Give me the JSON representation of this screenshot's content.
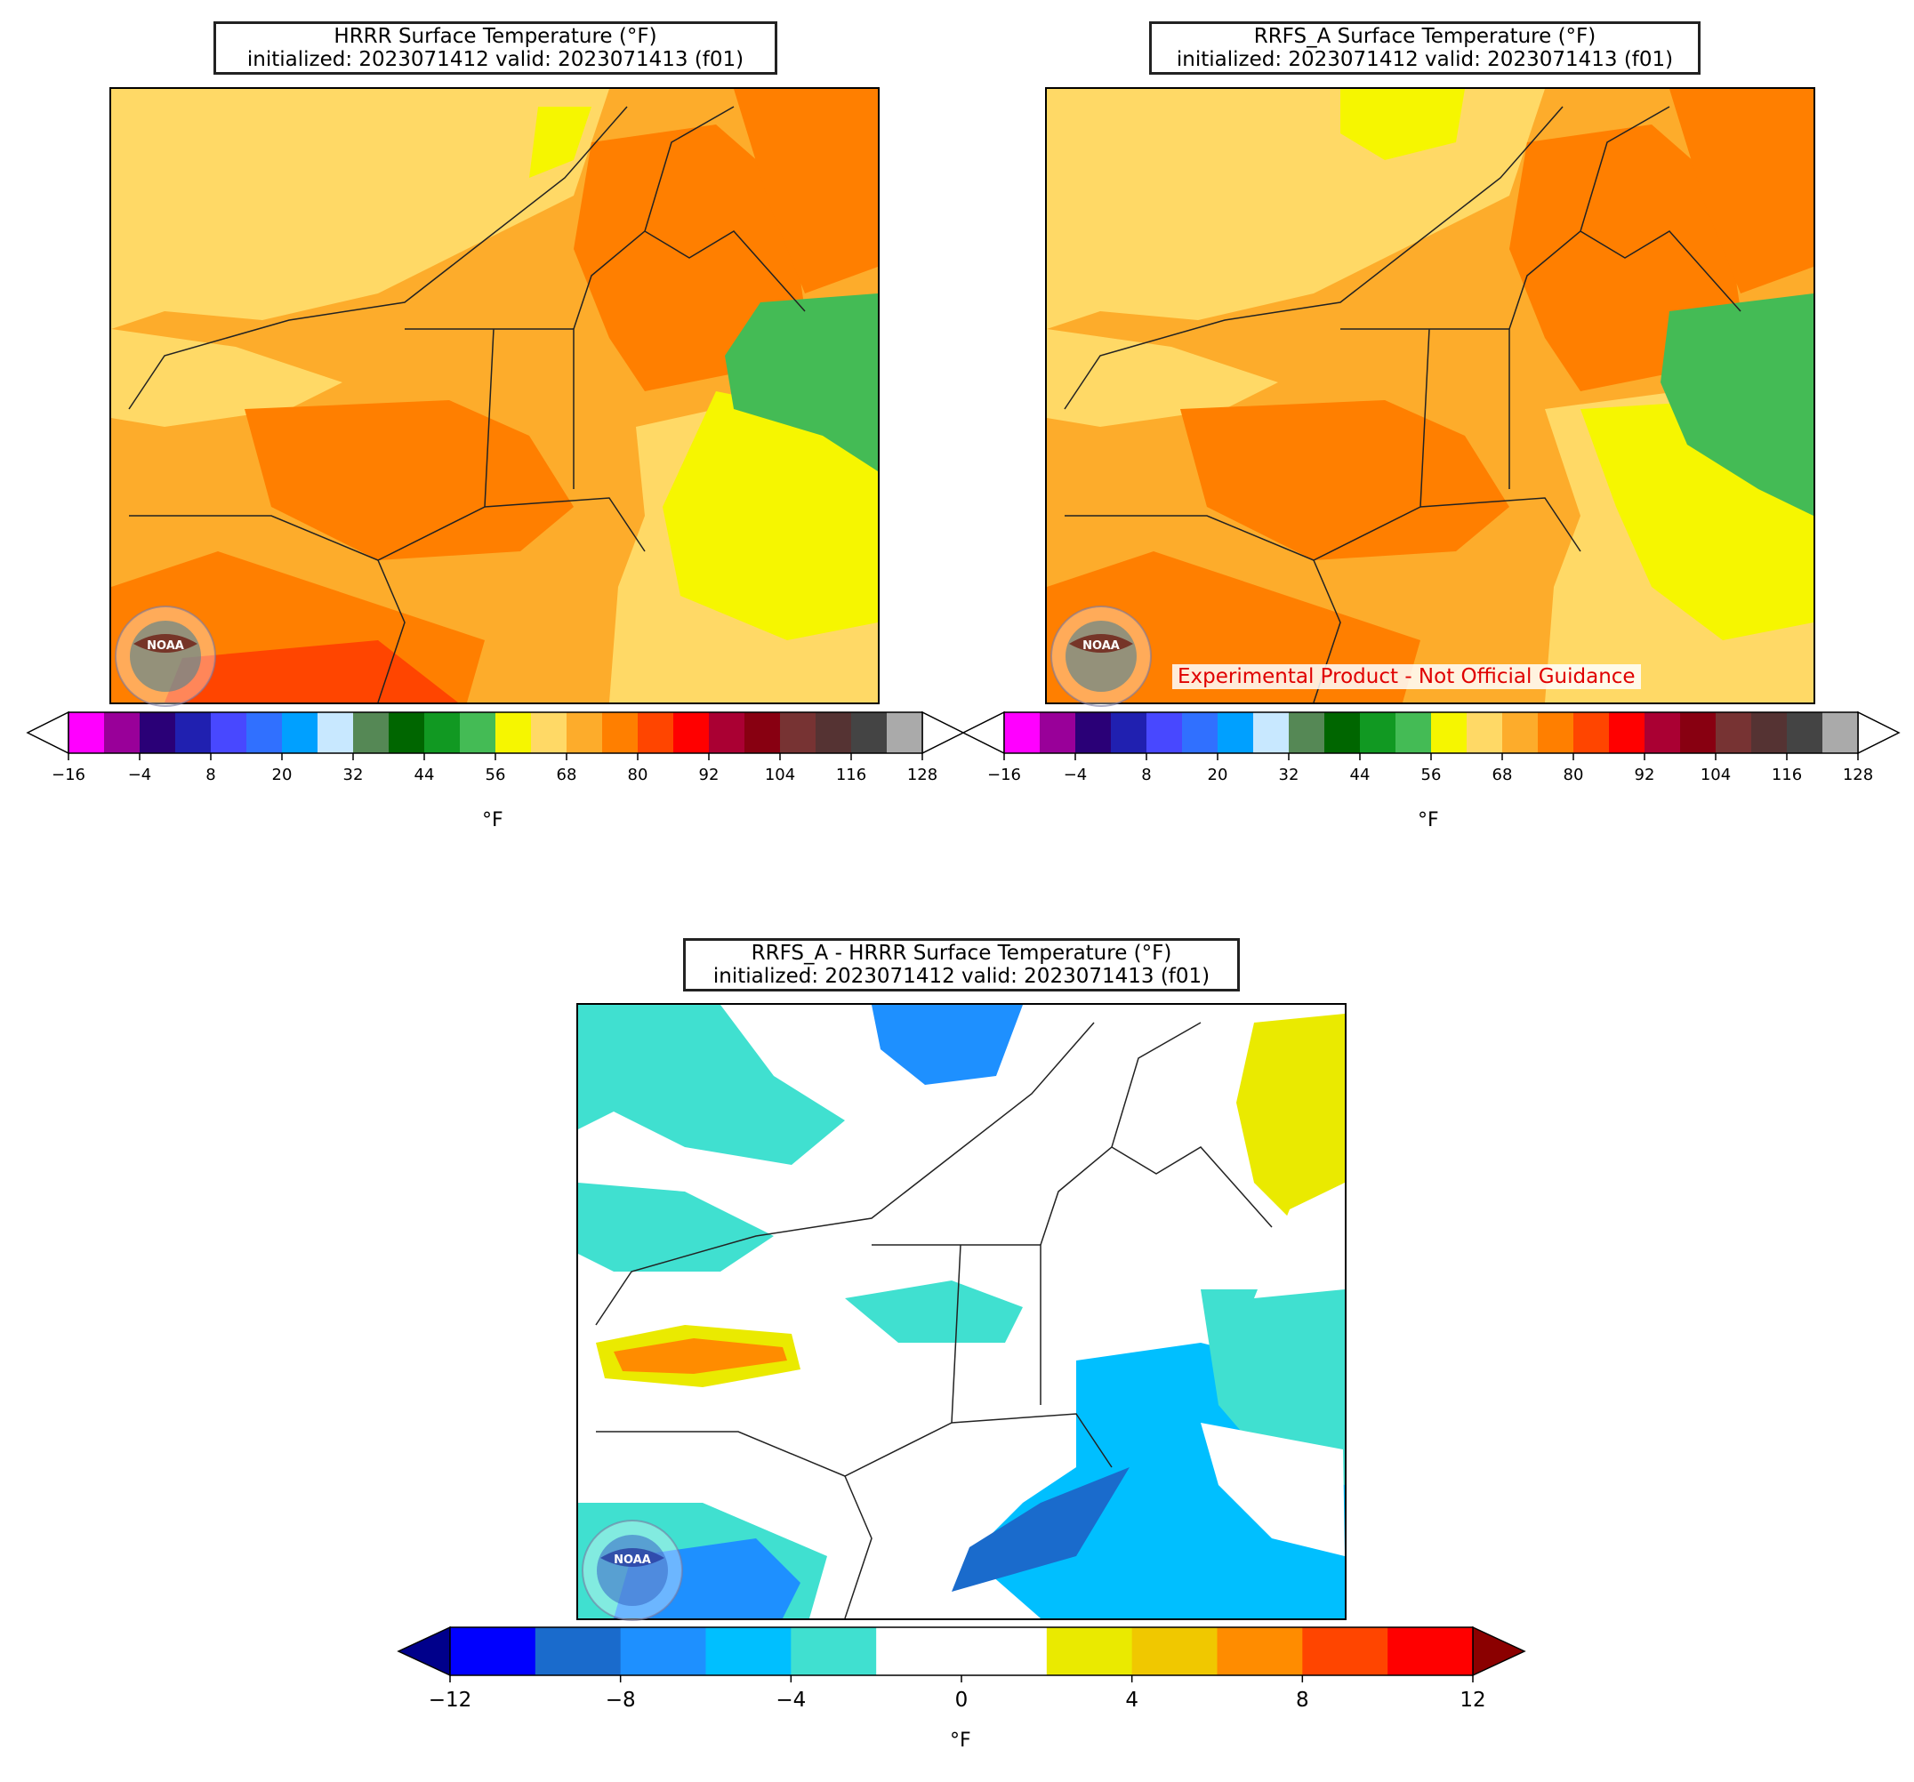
{
  "panels": [
    {
      "id": "hrrr",
      "title_line1": "HRRR Surface Temperature (°F)",
      "title_line2": "initialized: 2023071412 valid: 2023071413 (f01)"
    },
    {
      "id": "rrfs",
      "title_line1": "RRFS_A Surface Temperature (°F)",
      "title_line2": "initialized: 2023071412 valid: 2023071413 (f01)",
      "watermark": "Experimental Product - Not Official Guidance"
    },
    {
      "id": "diff",
      "title_line1": "RRFS_A - HRRR Surface Temperature (°F)",
      "title_line2": "initialized: 2023071412 valid: 2023071413 (f01)"
    }
  ],
  "logo_text": "NOAA",
  "temp_colorbar": {
    "unit": "°F",
    "ticks": [
      "−16",
      "−4",
      "8",
      "20",
      "32",
      "44",
      "56",
      "68",
      "80",
      "92",
      "104",
      "116",
      "128"
    ],
    "colors": [
      "#ff00ff",
      "#990099",
      "#2a0077",
      "#2020b0",
      "#4848ff",
      "#3070ff",
      "#00a0ff",
      "#c8e8ff",
      "#558855",
      "#006600",
      "#119922",
      "#44bb55",
      "#f6f600",
      "#ffd966",
      "#fdac2b",
      "#ff7f00",
      "#ff4500",
      "#ff0000",
      "#aa0033",
      "#880011",
      "#773333",
      "#553333",
      "#444444",
      "#aaaaaa"
    ],
    "extend_low": "#ffffff",
    "extend_high": "#ffffff"
  },
  "diff_colorbar": {
    "unit": "°F",
    "ticks": [
      "−12",
      "−8",
      "−4",
      "0",
      "4",
      "8",
      "12"
    ],
    "colors": [
      "#0000ff",
      "#1a6bcc",
      "#1e90ff",
      "#00bfff",
      "#40e0d0",
      "#ffffff",
      "#ffffff",
      "#eaea00",
      "#f0c800",
      "#ff8c00",
      "#ff4500",
      "#ff0000"
    ],
    "extend_low": "#00008b",
    "extend_high": "#8b0000"
  },
  "map_colors": {
    "land_warm": "#fdac2b",
    "land_hot": "#ff7f00",
    "land_mild": "#ffd966",
    "ocean_cool": "#f6f600",
    "ocean_cold": "#44bb55",
    "very_hot": "#ff4500",
    "diff_neutral": "#ffffff",
    "diff_cool": "#40e0d0",
    "diff_cold": "#00bfff",
    "diff_warm": "#eaea00"
  }
}
